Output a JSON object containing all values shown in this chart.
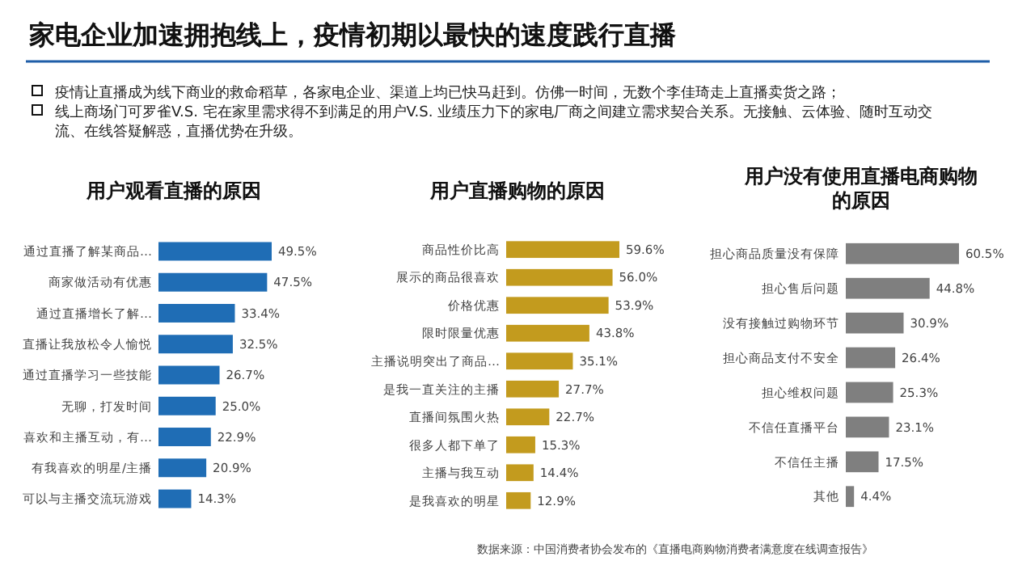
{
  "chart_data": [
    {
      "type": "other",
      "title": "家电企业加速拥抱线上，疫情初期以最快的速度践行直播",
      "annotations": [
        "疫情让直播成为线下商业的救命稻草，各家电企业、渠道上均已快马赶到。仿佛一时间，无数个李佳琦走上直播卖货之路；",
        "线上商场门可罗雀V.S. 宅在家里需求得不到满足的用户V.S. 业绩压力下的家电厂商之间建立需求契合关系。无接触、云体验、随时互动交流、在线答疑解惑，直播优势在升级。",
        "数据来源：中国消费者协会发布的《直播电商购物消费者满意度在线调查报告》"
      ]
    },
    {
      "type": "bar",
      "orientation": "horizontal",
      "title": "用户观看直播的原因",
      "categories": [
        "通过直播了解某商品…",
        "商家做活动有优惠",
        "通过直播增长了解…",
        "直播让我放松令人愉悦",
        "通过直播学习一些技能",
        "无聊，打发时间",
        "喜欢和主播互动，有…",
        "有我喜欢的明星/主播",
        "可以与主播交流玩游戏"
      ],
      "values": [
        49.5,
        47.5,
        33.4,
        32.5,
        26.7,
        25.0,
        22.9,
        20.9,
        14.3
      ],
      "color": "#1f6db5",
      "value_labels": [
        "49.5%",
        "47.5%",
        "33.4%",
        "32.5%",
        "26.7%",
        "25.0%",
        "22.9%",
        "20.9%",
        "14.3%"
      ]
    },
    {
      "type": "bar",
      "orientation": "horizontal",
      "title": "用户直播购物的原因",
      "categories": [
        "商品性价比高",
        "展示的商品很喜欢",
        "价格优惠",
        "限时限量优惠",
        "主播说明突出了商品…",
        "是我一直关注的主播",
        "直播间氛围火热",
        "很多人都下单了",
        "主播与我互动",
        "是我喜欢的明星"
      ],
      "values": [
        59.6,
        56.0,
        53.9,
        43.8,
        35.1,
        27.7,
        22.7,
        15.3,
        14.4,
        12.9
      ],
      "color": "#c39b1e",
      "value_labels": [
        "59.6%",
        "56.0%",
        "53.9%",
        "43.8%",
        "35.1%",
        "27.7%",
        "22.7%",
        "15.3%",
        "14.4%",
        "12.9%"
      ]
    },
    {
      "type": "bar",
      "orientation": "horizontal",
      "title": "用户没有使用直播电商购物的原因",
      "categories": [
        "担心商品质量没有保障",
        "担心售后问题",
        "没有接触过购物环节",
        "担心商品支付不安全",
        "担心维权问题",
        "不信任直播平台",
        "不信任主播",
        "其他"
      ],
      "values": [
        60.5,
        44.8,
        30.9,
        26.4,
        25.3,
        23.1,
        17.5,
        4.4
      ],
      "color": "#7f7f7f",
      "value_labels": [
        "60.5%",
        "44.8%",
        "30.9%",
        "26.4%",
        "25.3%",
        "23.1%",
        "17.5%",
        "4.4%"
      ]
    }
  ]
}
